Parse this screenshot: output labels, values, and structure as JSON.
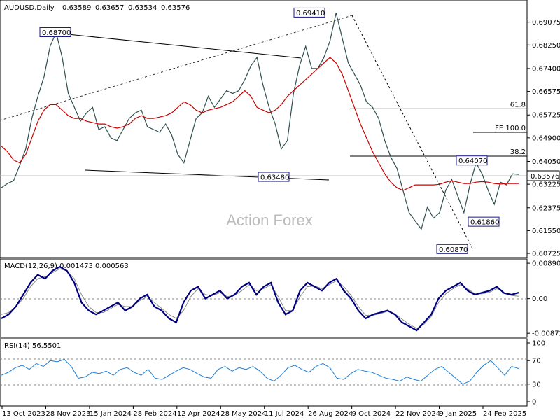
{
  "chart_data": {
    "type": "line",
    "symbol": "AUDUSD,Daily",
    "ohlc": [
      "0.63589",
      "0.63657",
      "0.63534",
      "0.63576"
    ],
    "watermark": "Action Forex",
    "dates": [
      "13 Oct 2023",
      "28 Nov 2023",
      "15 Jan 2024",
      "28 Feb 2024",
      "12 Apr 2024",
      "28 May 2024",
      "11 Jul 2024",
      "26 Aug 2024",
      "9 Oct 2024",
      "22 Nov 2024",
      "9 Jan 2025",
      "24 Feb 2025"
    ],
    "price": {
      "ylim": [
        0.606,
        0.6985
      ],
      "ticks": [
        "0.69075",
        "0.68250",
        "0.67400",
        "0.66575",
        "0.65725",
        "0.64900",
        "0.64050",
        "0.63225",
        "0.62375",
        "0.61550",
        "0.60725"
      ],
      "current": "0.63576",
      "levels": [
        {
          "label": "0.68700",
          "value": 0.687
        },
        {
          "label": "0.69410",
          "value": 0.6941
        },
        {
          "label": "0.63480",
          "value": 0.6348
        },
        {
          "label": "0.64070",
          "value": 0.6407
        },
        {
          "label": "0.61860",
          "value": 0.6186
        },
        {
          "label": "0.60870",
          "value": 0.6087
        }
      ],
      "fibs": [
        {
          "label": "61.8",
          "value": 0.6595
        },
        {
          "label": "FE 100.0",
          "value": 0.651
        },
        {
          "label": "38.2",
          "value": 0.6424
        }
      ],
      "series": [
        {
          "name": "price",
          "values": [
            0.631,
            0.6325,
            0.6335,
            0.639,
            0.645,
            0.656,
            0.664,
            0.671,
            0.682,
            0.687,
            0.678,
            0.665,
            0.66,
            0.655,
            0.658,
            0.66,
            0.652,
            0.653,
            0.649,
            0.648,
            0.652,
            0.656,
            0.658,
            0.659,
            0.653,
            0.652,
            0.651,
            0.654,
            0.65,
            0.643,
            0.64,
            0.648,
            0.656,
            0.658,
            0.664,
            0.66,
            0.663,
            0.666,
            0.665,
            0.666,
            0.67,
            0.675,
            0.678,
            0.668,
            0.66,
            0.654,
            0.645,
            0.648,
            0.665,
            0.675,
            0.682,
            0.674,
            0.674,
            0.678,
            0.684,
            0.6941,
            0.685,
            0.676,
            0.672,
            0.668,
            0.662,
            0.66,
            0.656,
            0.648,
            0.642,
            0.638,
            0.63,
            0.622,
            0.619,
            0.616,
            0.624,
            0.62,
            0.622,
            0.63,
            0.634,
            0.628,
            0.622,
            0.632,
            0.64,
            0.636,
            0.63,
            0.625,
            0.633,
            0.632,
            0.636,
            0.6358
          ]
        },
        {
          "name": "ma",
          "values": [
            0.646,
            0.644,
            0.641,
            0.64,
            0.643,
            0.649,
            0.655,
            0.659,
            0.661,
            0.661,
            0.659,
            0.657,
            0.656,
            0.656,
            0.655,
            0.6545,
            0.654,
            0.654,
            0.653,
            0.6525,
            0.653,
            0.654,
            0.656,
            0.657,
            0.656,
            0.656,
            0.6565,
            0.657,
            0.658,
            0.66,
            0.662,
            0.661,
            0.659,
            0.658,
            0.659,
            0.6595,
            0.66,
            0.661,
            0.662,
            0.664,
            0.666,
            0.664,
            0.66,
            0.659,
            0.658,
            0.659,
            0.661,
            0.664,
            0.666,
            0.668,
            0.67,
            0.672,
            0.674,
            0.676,
            0.678,
            0.676,
            0.672,
            0.666,
            0.66,
            0.654,
            0.649,
            0.644,
            0.64,
            0.636,
            0.633,
            0.631,
            0.63,
            0.631,
            0.632,
            0.632,
            0.632,
            0.632,
            0.6322,
            0.633,
            0.6335,
            0.633,
            0.6325,
            0.6325,
            0.633,
            0.6332,
            0.633,
            0.6325,
            0.6323,
            0.6325,
            0.6325,
            0.6325
          ]
        }
      ]
    },
    "macd": {
      "label": "MACD(12,26,9) 0.001473 0.000563",
      "ylim": [
        -0.00958,
        0.009801
      ],
      "ticks": [
        "0.008901",
        "0.00",
        "-0.008729"
      ],
      "series": [
        {
          "name": "macd",
          "values": [
            -0.005,
            -0.004,
            -0.002,
            0.001,
            0.004,
            0.006,
            0.005,
            0.007,
            0.008,
            0.007,
            0.004,
            -0.001,
            -0.003,
            -0.004,
            -0.003,
            -0.002,
            -0.001,
            -0.003,
            -0.002,
            0.0,
            0.001,
            -0.002,
            -0.003,
            -0.005,
            -0.006,
            -0.001,
            0.002,
            0.003,
            0.0,
            0.001,
            0.002,
            0.0,
            0.001,
            0.003,
            0.004,
            0.001,
            0.003,
            0.004,
            -0.001,
            -0.004,
            -0.003,
            0.002,
            0.004,
            0.003,
            0.002,
            0.004,
            0.005,
            0.002,
            0.0,
            -0.003,
            -0.005,
            -0.004,
            -0.0035,
            -0.003,
            -0.004,
            -0.006,
            -0.007,
            -0.008,
            -0.006,
            -0.004,
            0.0,
            0.002,
            0.003,
            0.004,
            0.002,
            0.001,
            0.0015,
            0.002,
            0.003,
            0.0014,
            0.001,
            0.0015
          ]
        },
        {
          "name": "signal",
          "values": [
            -0.004,
            -0.0035,
            -0.002,
            0.0,
            0.003,
            0.005,
            0.0055,
            0.0065,
            0.0075,
            0.007,
            0.005,
            0.001,
            -0.002,
            -0.0035,
            -0.0035,
            -0.0025,
            -0.0015,
            -0.002,
            -0.002,
            -0.0005,
            0.0005,
            -0.001,
            -0.0025,
            -0.004,
            -0.005,
            -0.003,
            0.0005,
            0.0025,
            0.001,
            0.0008,
            0.0015,
            0.0005,
            0.0008,
            0.002,
            0.0035,
            0.002,
            0.0025,
            0.0035,
            0.0005,
            -0.003,
            -0.003,
            0.0005,
            0.003,
            0.0032,
            0.0025,
            0.0035,
            0.0045,
            0.003,
            0.0008,
            -0.002,
            -0.0042,
            -0.0042,
            -0.0038,
            -0.0032,
            -0.0038,
            -0.0052,
            -0.0065,
            -0.0075,
            -0.0065,
            -0.0045,
            -0.001,
            0.0012,
            0.0025,
            0.0035,
            0.0025,
            0.0012,
            0.0012,
            0.0016,
            0.0025,
            0.0015,
            0.0008,
            0.0006
          ]
        }
      ]
    },
    "rsi": {
      "label": "RSI(14) 56.5501",
      "ylim": [
        0,
        100
      ],
      "ticks": [
        100,
        70,
        30,
        0
      ],
      "series": [
        {
          "name": "rsi",
          "values": [
            45,
            50,
            58,
            62,
            55,
            65,
            60,
            70,
            68,
            72,
            60,
            40,
            42,
            50,
            48,
            52,
            45,
            55,
            58,
            50,
            45,
            55,
            40,
            38,
            45,
            52,
            58,
            55,
            48,
            42,
            40,
            55,
            60,
            52,
            58,
            55,
            60,
            52,
            40,
            35,
            45,
            58,
            62,
            55,
            50,
            60,
            65,
            58,
            40,
            38,
            48,
            55,
            52,
            50,
            45,
            40,
            38,
            35,
            42,
            38,
            35,
            45,
            55,
            60,
            50,
            40,
            30,
            35,
            50,
            62,
            70,
            58,
            45,
            60,
            56.55
          ]
        }
      ]
    }
  }
}
